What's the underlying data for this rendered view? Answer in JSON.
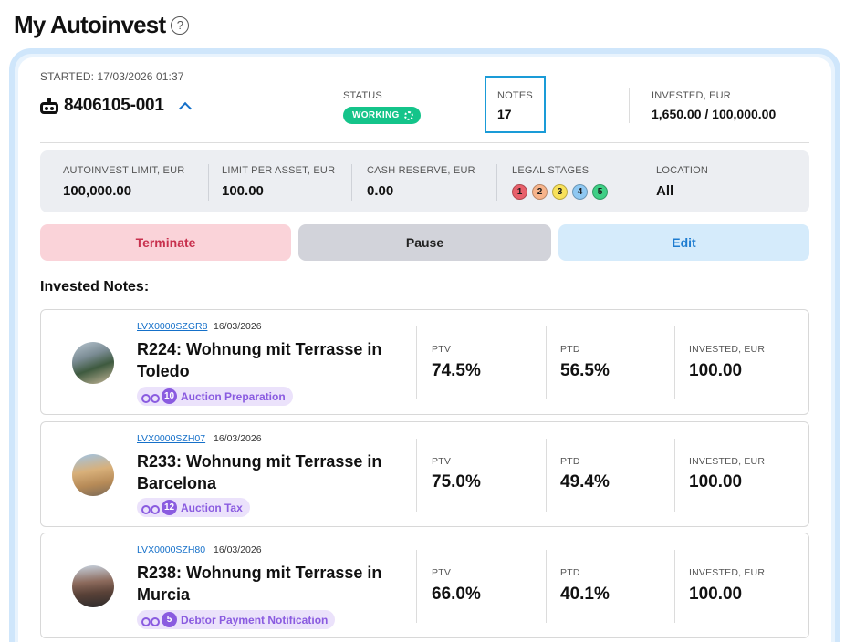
{
  "page": {
    "title": "My Autoinvest",
    "help_icon": "?"
  },
  "autoinvest": {
    "started": "STARTED: 17/03/2026 01:37",
    "bot_id": "8406105-001",
    "status_label": "STATUS",
    "status_value": "WORKING",
    "notes_label": "NOTES",
    "notes_value": "17",
    "invested_label": "INVESTED, EUR",
    "invested_value": "1,650.00 / 100,000.00"
  },
  "limits": {
    "autoinvest_limit_label": "AUTOINVEST LIMIT, EUR",
    "autoinvest_limit_value": "100,000.00",
    "limit_per_asset_label": "LIMIT PER ASSET, EUR",
    "limit_per_asset_value": "100.00",
    "cash_reserve_label": "CASH RESERVE, EUR",
    "cash_reserve_value": "0.00",
    "legal_stages_label": "LEGAL STAGES",
    "legal_stages": [
      {
        "num": "1",
        "color": "#e8606b"
      },
      {
        "num": "2",
        "color": "#f7b48b"
      },
      {
        "num": "3",
        "color": "#f8e15a"
      },
      {
        "num": "4",
        "color": "#8ec8f2"
      },
      {
        "num": "5",
        "color": "#3fcf86"
      }
    ],
    "location_label": "LOCATION",
    "location_value": "All"
  },
  "actions": {
    "terminate": "Terminate",
    "pause": "Pause",
    "edit": "Edit"
  },
  "section_title": "Invested Notes:",
  "notes": [
    {
      "code": "LVX0000SZGR8",
      "date": "16/03/2026",
      "title": "R224: Wohnung mit Terrasse in Toledo",
      "stage_num": "10",
      "stage_label": "Auction Preparation",
      "ptv_label": "PTV",
      "ptv": "74.5%",
      "ptd_label": "PTD",
      "ptd": "56.5%",
      "invested_label": "INVESTED, EUR",
      "invested": "100.00"
    },
    {
      "code": "LVX0000SZH07",
      "date": "16/03/2026",
      "title": "R233: Wohnung mit Terrasse in Barcelona",
      "stage_num": "12",
      "stage_label": "Auction Tax",
      "ptv_label": "PTV",
      "ptv": "75.0%",
      "ptd_label": "PTD",
      "ptd": "49.4%",
      "invested_label": "INVESTED, EUR",
      "invested": "100.00"
    },
    {
      "code": "LVX0000SZH80",
      "date": "16/03/2026",
      "title": "R238: Wohnung mit Terrasse in Murcia",
      "stage_num": "5",
      "stage_label": "Debtor Payment Notification",
      "ptv_label": "PTV",
      "ptv": "66.0%",
      "ptd_label": "PTD",
      "ptd": "40.1%",
      "invested_label": "INVESTED, EUR",
      "invested": "100.00"
    }
  ]
}
